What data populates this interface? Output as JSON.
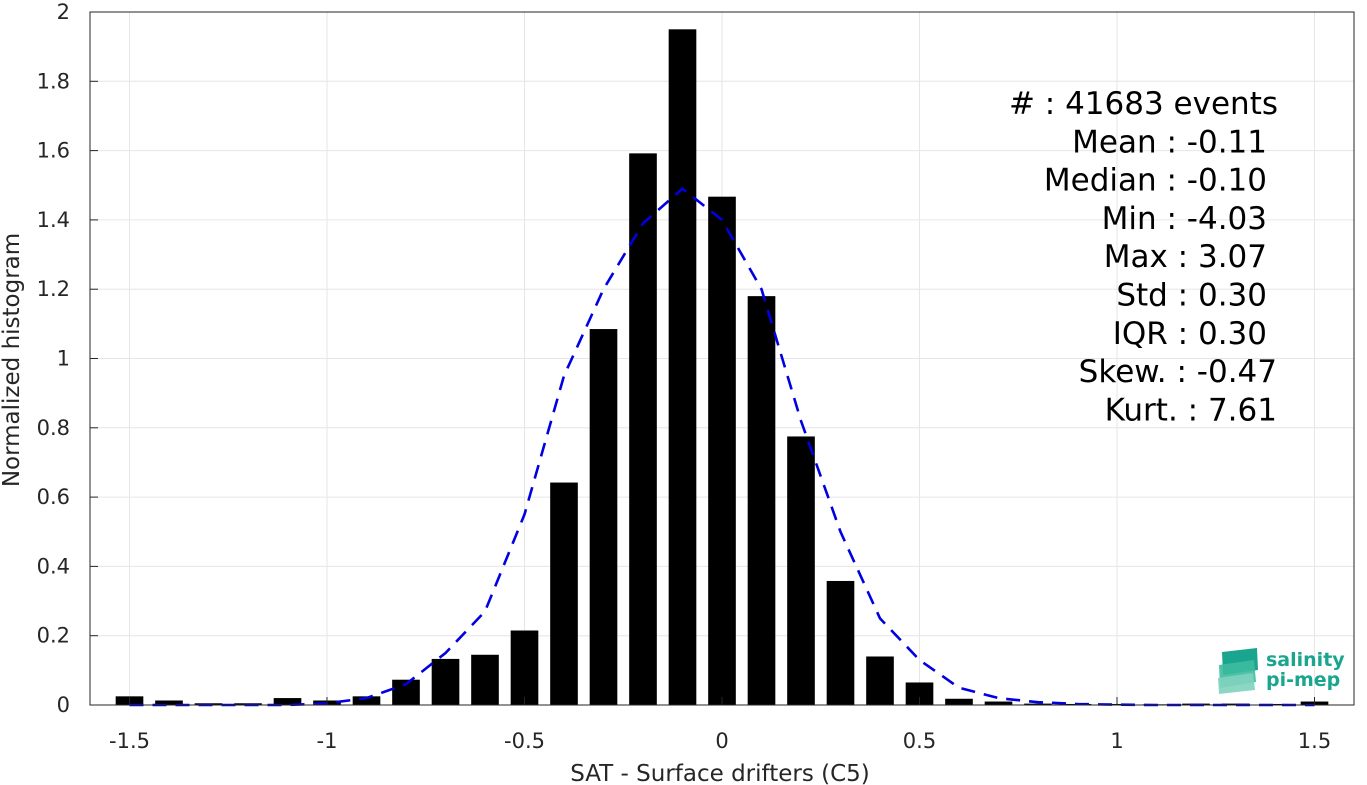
{
  "chart_data": {
    "type": "bar",
    "xlabel": "SAT - Surface drifters (C5)",
    "ylabel": "Normalized histogram",
    "xlim": [
      -1.6,
      1.6
    ],
    "ylim": [
      0,
      2
    ],
    "grid": true,
    "x_ticks": [
      "-1.5",
      "-1",
      "-0.5",
      "0",
      "0.5",
      "1",
      "1.5"
    ],
    "y_ticks": [
      "0",
      "0.2",
      "0.4",
      "0.6",
      "0.8",
      "1",
      "1.2",
      "1.4",
      "1.6",
      "1.8",
      "2"
    ],
    "bar_width": 0.07,
    "x": [
      -1.5,
      -1.4,
      -1.3,
      -1.2,
      -1.1,
      -1.0,
      -0.9,
      -0.8,
      -0.7,
      -0.6,
      -0.5,
      -0.4,
      -0.3,
      -0.2,
      -0.1,
      0.0,
      0.1,
      0.2,
      0.3,
      0.4,
      0.5,
      0.6,
      0.7,
      0.8,
      0.9,
      1.0,
      1.1,
      1.2,
      1.3,
      1.4,
      1.5
    ],
    "values": [
      0.025,
      0.013,
      0.005,
      0.005,
      0.02,
      0.013,
      0.025,
      0.073,
      0.133,
      0.145,
      0.215,
      0.642,
      1.085,
      1.592,
      1.95,
      1.467,
      1.18,
      0.775,
      0.358,
      0.14,
      0.065,
      0.018,
      0.01,
      0.004,
      0.003,
      0.003,
      0.002,
      0.004,
      0.004,
      0.003,
      0.01
    ],
    "fit_curve": {
      "style": "dashed",
      "color": "#0000e0",
      "x": [
        -1.5,
        -1.4,
        -1.3,
        -1.2,
        -1.1,
        -1.0,
        -0.9,
        -0.8,
        -0.7,
        -0.6,
        -0.5,
        -0.4,
        -0.3,
        -0.2,
        -0.1,
        0.0,
        0.1,
        0.2,
        0.3,
        0.4,
        0.5,
        0.6,
        0.7,
        0.8,
        0.9,
        1.0,
        1.1,
        1.2,
        1.3,
        1.4,
        1.5
      ],
      "y": [
        0.0,
        0.0,
        0.0,
        0.0,
        0.0,
        0.005,
        0.02,
        0.06,
        0.15,
        0.27,
        0.55,
        0.95,
        1.2,
        1.39,
        1.49,
        1.4,
        1.2,
        0.82,
        0.5,
        0.25,
        0.13,
        0.05,
        0.02,
        0.008,
        0.003,
        0.001,
        0.0,
        0.0,
        0.0,
        0.0,
        0.0
      ]
    },
    "annotations": [
      "#  : 41683 events",
      "Mean : -0.11",
      "Median : -0.10",
      "Min : -4.03",
      "Max : 3.07",
      "Std : 0.30",
      "IQR : 0.30",
      "Skew. : -0.47",
      "Kurt. : 7.61"
    ],
    "bar_color": "#000000",
    "grid_color": "#e6e6e6"
  },
  "logo": {
    "line1": "salinity",
    "line2": "pi-mep",
    "color": "#1aa58f"
  }
}
